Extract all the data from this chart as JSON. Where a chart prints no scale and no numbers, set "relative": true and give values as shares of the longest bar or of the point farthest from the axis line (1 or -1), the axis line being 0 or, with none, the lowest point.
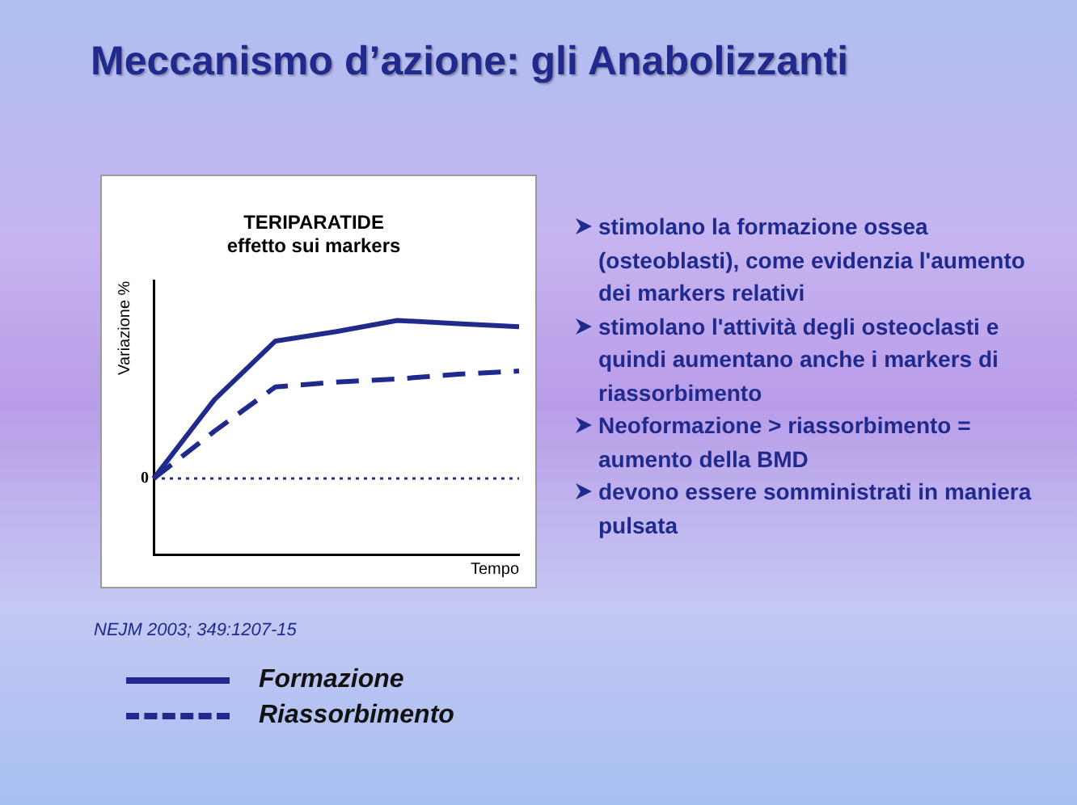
{
  "chart_data": {
    "type": "line",
    "title": "TERIPARATIDE",
    "subtitle": "effetto sui markers",
    "ylabel": "Variazione %",
    "relative": true,
    "categories": [
      null,
      null,
      null,
      null,
      null,
      null,
      null
    ],
    "series": [
      {
        "name": "Formazione",
        "color": "#1f2a8c",
        "line_style": "solid",
        "values": [
          0,
          0.5,
          0.87,
          0.93,
          1,
          0.98,
          0.96
        ]
      },
      {
        "name": "Riassorbimento",
        "color": "#1f2a8c",
        "line_style": "dashed",
        "values": [
          0,
          0.3,
          0.58,
          0.61,
          0.63,
          0.66,
          0.68
        ]
      }
    ],
    "ref_lines": [
      {
        "axis": "y",
        "value": 0,
        "label": "0",
        "line_style": "dotted",
        "color": "#1f2a8c"
      }
    ],
    "legend": "bottom left",
    "grid": false,
    "marker": "none",
    "annotations": [
      "Meccanismo d’azione: gli Anabolizzanti",
      "stimolano la formazione ossea (osteoblasti), come evidenzia l'aumento dei markers relativi",
      "stimolano l'attività degli osteoclasti e quindi aumentano anche i markers di riassorbimento",
      "Neoformazione > riassorbimento = aumento della BMD",
      " devono essere somministrati in maniera pulsata",
      "NEJM 2003; 349:1207-15",
      "Tempo"
    ]
  }
}
